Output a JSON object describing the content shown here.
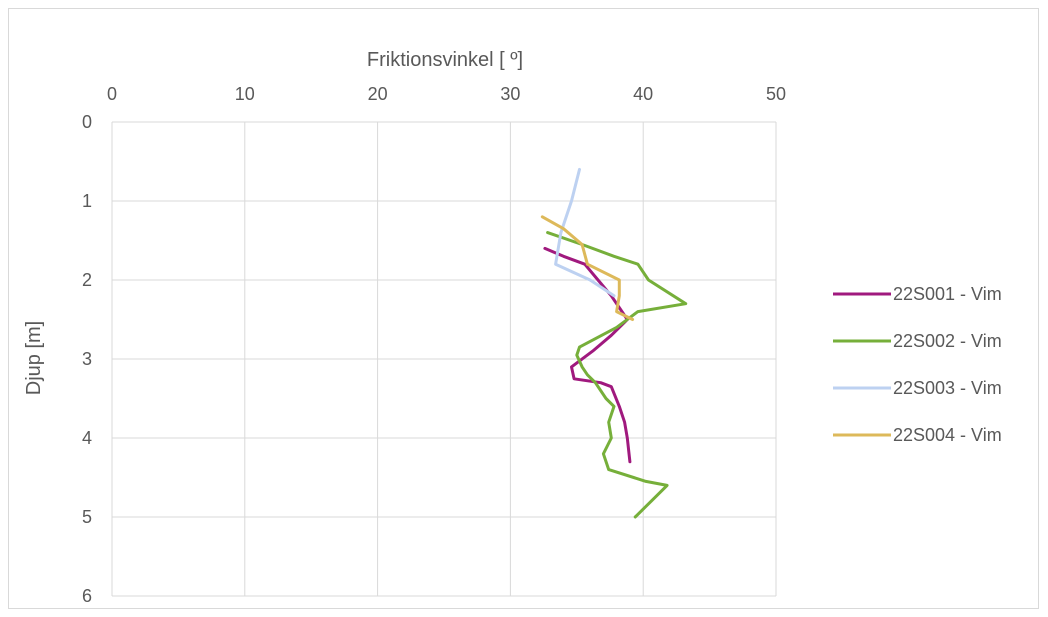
{
  "chart_data": {
    "type": "line",
    "xlabel": "Friktionsvinkel [ º]",
    "ylabel": "Djup [m]",
    "xlim": [
      0,
      50
    ],
    "ylim": [
      0,
      6
    ],
    "x_ticks": [
      0,
      10,
      20,
      30,
      40,
      50
    ],
    "y_ticks": [
      0,
      1,
      2,
      3,
      4,
      5,
      6
    ],
    "x_axis_position": "top",
    "y_reversed": true,
    "grid": true,
    "legend_position": "right",
    "series": [
      {
        "name": "22S001 - Vim",
        "color": "#A0197E",
        "points": [
          [
            32.6,
            1.6
          ],
          [
            34.0,
            1.7
          ],
          [
            35.6,
            1.8
          ],
          [
            36.6,
            2.0
          ],
          [
            37.6,
            2.2
          ],
          [
            38.4,
            2.4
          ],
          [
            38.8,
            2.5
          ],
          [
            37.6,
            2.7
          ],
          [
            36.2,
            2.9
          ],
          [
            34.6,
            3.1
          ],
          [
            34.8,
            3.25
          ],
          [
            36.8,
            3.3
          ],
          [
            37.6,
            3.35
          ],
          [
            38.2,
            3.6
          ],
          [
            38.6,
            3.8
          ],
          [
            38.8,
            4.0
          ],
          [
            39.0,
            4.3
          ]
        ]
      },
      {
        "name": "22S002 - Vim",
        "color": "#76AF3A",
        "points": [
          [
            32.8,
            1.4
          ],
          [
            35.4,
            1.55
          ],
          [
            37.8,
            1.7
          ],
          [
            39.6,
            1.8
          ],
          [
            40.4,
            2.0
          ],
          [
            43.2,
            2.3
          ],
          [
            39.6,
            2.4
          ],
          [
            38.0,
            2.6
          ],
          [
            35.2,
            2.85
          ],
          [
            35.0,
            2.95
          ],
          [
            35.4,
            3.1
          ],
          [
            35.8,
            3.2
          ],
          [
            36.4,
            3.3
          ],
          [
            37.2,
            3.5
          ],
          [
            37.8,
            3.6
          ],
          [
            37.4,
            3.8
          ],
          [
            37.6,
            4.0
          ],
          [
            37.0,
            4.2
          ],
          [
            37.4,
            4.4
          ],
          [
            40.2,
            4.55
          ],
          [
            41.8,
            4.6
          ],
          [
            40.6,
            4.8
          ],
          [
            39.4,
            5.0
          ]
        ]
      },
      {
        "name": "22S003 - Vim",
        "color": "#BDD1F1",
        "points": [
          [
            35.2,
            0.6
          ],
          [
            34.6,
            1.0
          ],
          [
            33.8,
            1.4
          ],
          [
            33.4,
            1.8
          ],
          [
            36.0,
            2.0
          ],
          [
            37.8,
            2.2
          ]
        ]
      },
      {
        "name": "22S004 - Vim",
        "color": "#DDB95A",
        "points": [
          [
            32.4,
            1.2
          ],
          [
            34.0,
            1.35
          ],
          [
            35.4,
            1.55
          ],
          [
            35.8,
            1.8
          ],
          [
            38.2,
            2.0
          ],
          [
            38.2,
            2.2
          ],
          [
            38.0,
            2.4
          ],
          [
            39.2,
            2.5
          ]
        ]
      }
    ]
  }
}
